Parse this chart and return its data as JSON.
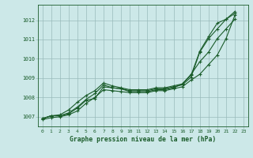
{
  "title": "Graphe pression niveau de la mer (hPa)",
  "bg_color": "#cce8e8",
  "plot_bg_color": "#cce8e8",
  "grid_color": "#99bbbb",
  "line_color": "#1a5c2a",
  "xlim": [
    -0.5,
    23.5
  ],
  "ylim": [
    1006.5,
    1012.8
  ],
  "yticks": [
    1007,
    1008,
    1009,
    1010,
    1011,
    1012
  ],
  "x_ticks": [
    0,
    1,
    2,
    3,
    4,
    5,
    6,
    7,
    8,
    9,
    10,
    11,
    12,
    13,
    14,
    15,
    16,
    17,
    18,
    19,
    20,
    21,
    22,
    23
  ],
  "series": [
    [
      1006.9,
      1007.05,
      1007.05,
      1007.2,
      1007.5,
      1007.9,
      1008.2,
      1008.65,
      1008.5,
      1008.45,
      1008.35,
      1008.35,
      1008.35,
      1008.45,
      1008.45,
      1008.55,
      1008.65,
      1009.05,
      1010.35,
      1011.05,
      1011.55,
      1012.05,
      1012.35
    ],
    [
      1006.9,
      1007.05,
      1007.05,
      1007.15,
      1007.45,
      1007.85,
      1007.95,
      1008.55,
      1008.5,
      1008.45,
      1008.3,
      1008.3,
      1008.3,
      1008.4,
      1008.4,
      1008.5,
      1008.7,
      1009.2,
      1009.85,
      1010.35,
      1011.05,
      1011.55,
      1012.05
    ],
    [
      1006.9,
      1007.05,
      1007.1,
      1007.35,
      1007.75,
      1008.1,
      1008.35,
      1008.75,
      1008.6,
      1008.5,
      1008.4,
      1008.4,
      1008.4,
      1008.5,
      1008.5,
      1008.6,
      1008.7,
      1009.15,
      1010.4,
      1011.15,
      1011.85,
      1012.05,
      1012.45
    ],
    [
      1006.85,
      1006.95,
      1007.0,
      1007.1,
      1007.3,
      1007.7,
      1008.0,
      1008.4,
      1008.35,
      1008.3,
      1008.25,
      1008.25,
      1008.25,
      1008.35,
      1008.35,
      1008.45,
      1008.55,
      1008.9,
      1009.2,
      1009.7,
      1010.2,
      1011.05,
      1012.25
    ]
  ]
}
